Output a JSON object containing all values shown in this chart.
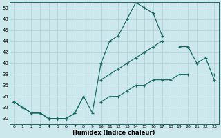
{
  "title": "",
  "xlabel": "Humidex (Indice chaleur)",
  "xlim": [
    -0.5,
    23.5
  ],
  "ylim": [
    29,
    51
  ],
  "yticks": [
    30,
    32,
    34,
    36,
    38,
    40,
    42,
    44,
    46,
    48,
    50
  ],
  "xticks": [
    0,
    1,
    2,
    3,
    4,
    5,
    6,
    7,
    8,
    9,
    10,
    11,
    12,
    13,
    14,
    15,
    16,
    17,
    18,
    19,
    20,
    21,
    22,
    23
  ],
  "bg_color": "#cde8ec",
  "line_color": "#1a6e65",
  "grid_color": "#b8d8dc",
  "series": [
    {
      "x": [
        0,
        1,
        2,
        3,
        4,
        5,
        6,
        7,
        8,
        9,
        10,
        11,
        12,
        13,
        14,
        15,
        16,
        17,
        18,
        19,
        20,
        21,
        22,
        23
      ],
      "y": [
        33,
        32,
        31,
        31,
        30,
        30,
        30,
        31,
        34,
        31,
        40,
        44,
        45,
        48,
        51,
        50,
        49,
        45,
        null,
        43,
        43,
        40,
        41,
        37
      ]
    },
    {
      "x": [
        0,
        1,
        2,
        3,
        4,
        5,
        6,
        7,
        8,
        9,
        10,
        11,
        12,
        13,
        14,
        15,
        16,
        17,
        18,
        19,
        20,
        21,
        22,
        23
      ],
      "y": [
        33,
        32,
        31,
        31,
        30,
        30,
        30,
        31,
        34,
        null,
        37,
        38,
        39,
        40,
        41,
        42,
        43,
        44,
        null,
        null,
        43,
        null,
        null,
        38
      ]
    },
    {
      "x": [
        0,
        1,
        2,
        3,
        4,
        5,
        6,
        7,
        8,
        9,
        10,
        11,
        12,
        13,
        14,
        15,
        16,
        17,
        18,
        19,
        20,
        21,
        22,
        23
      ],
      "y": [
        33,
        32,
        31,
        31,
        30,
        30,
        30,
        null,
        null,
        null,
        33,
        34,
        34,
        35,
        36,
        36,
        37,
        37,
        37,
        38,
        38,
        null,
        null,
        37
      ]
    }
  ]
}
